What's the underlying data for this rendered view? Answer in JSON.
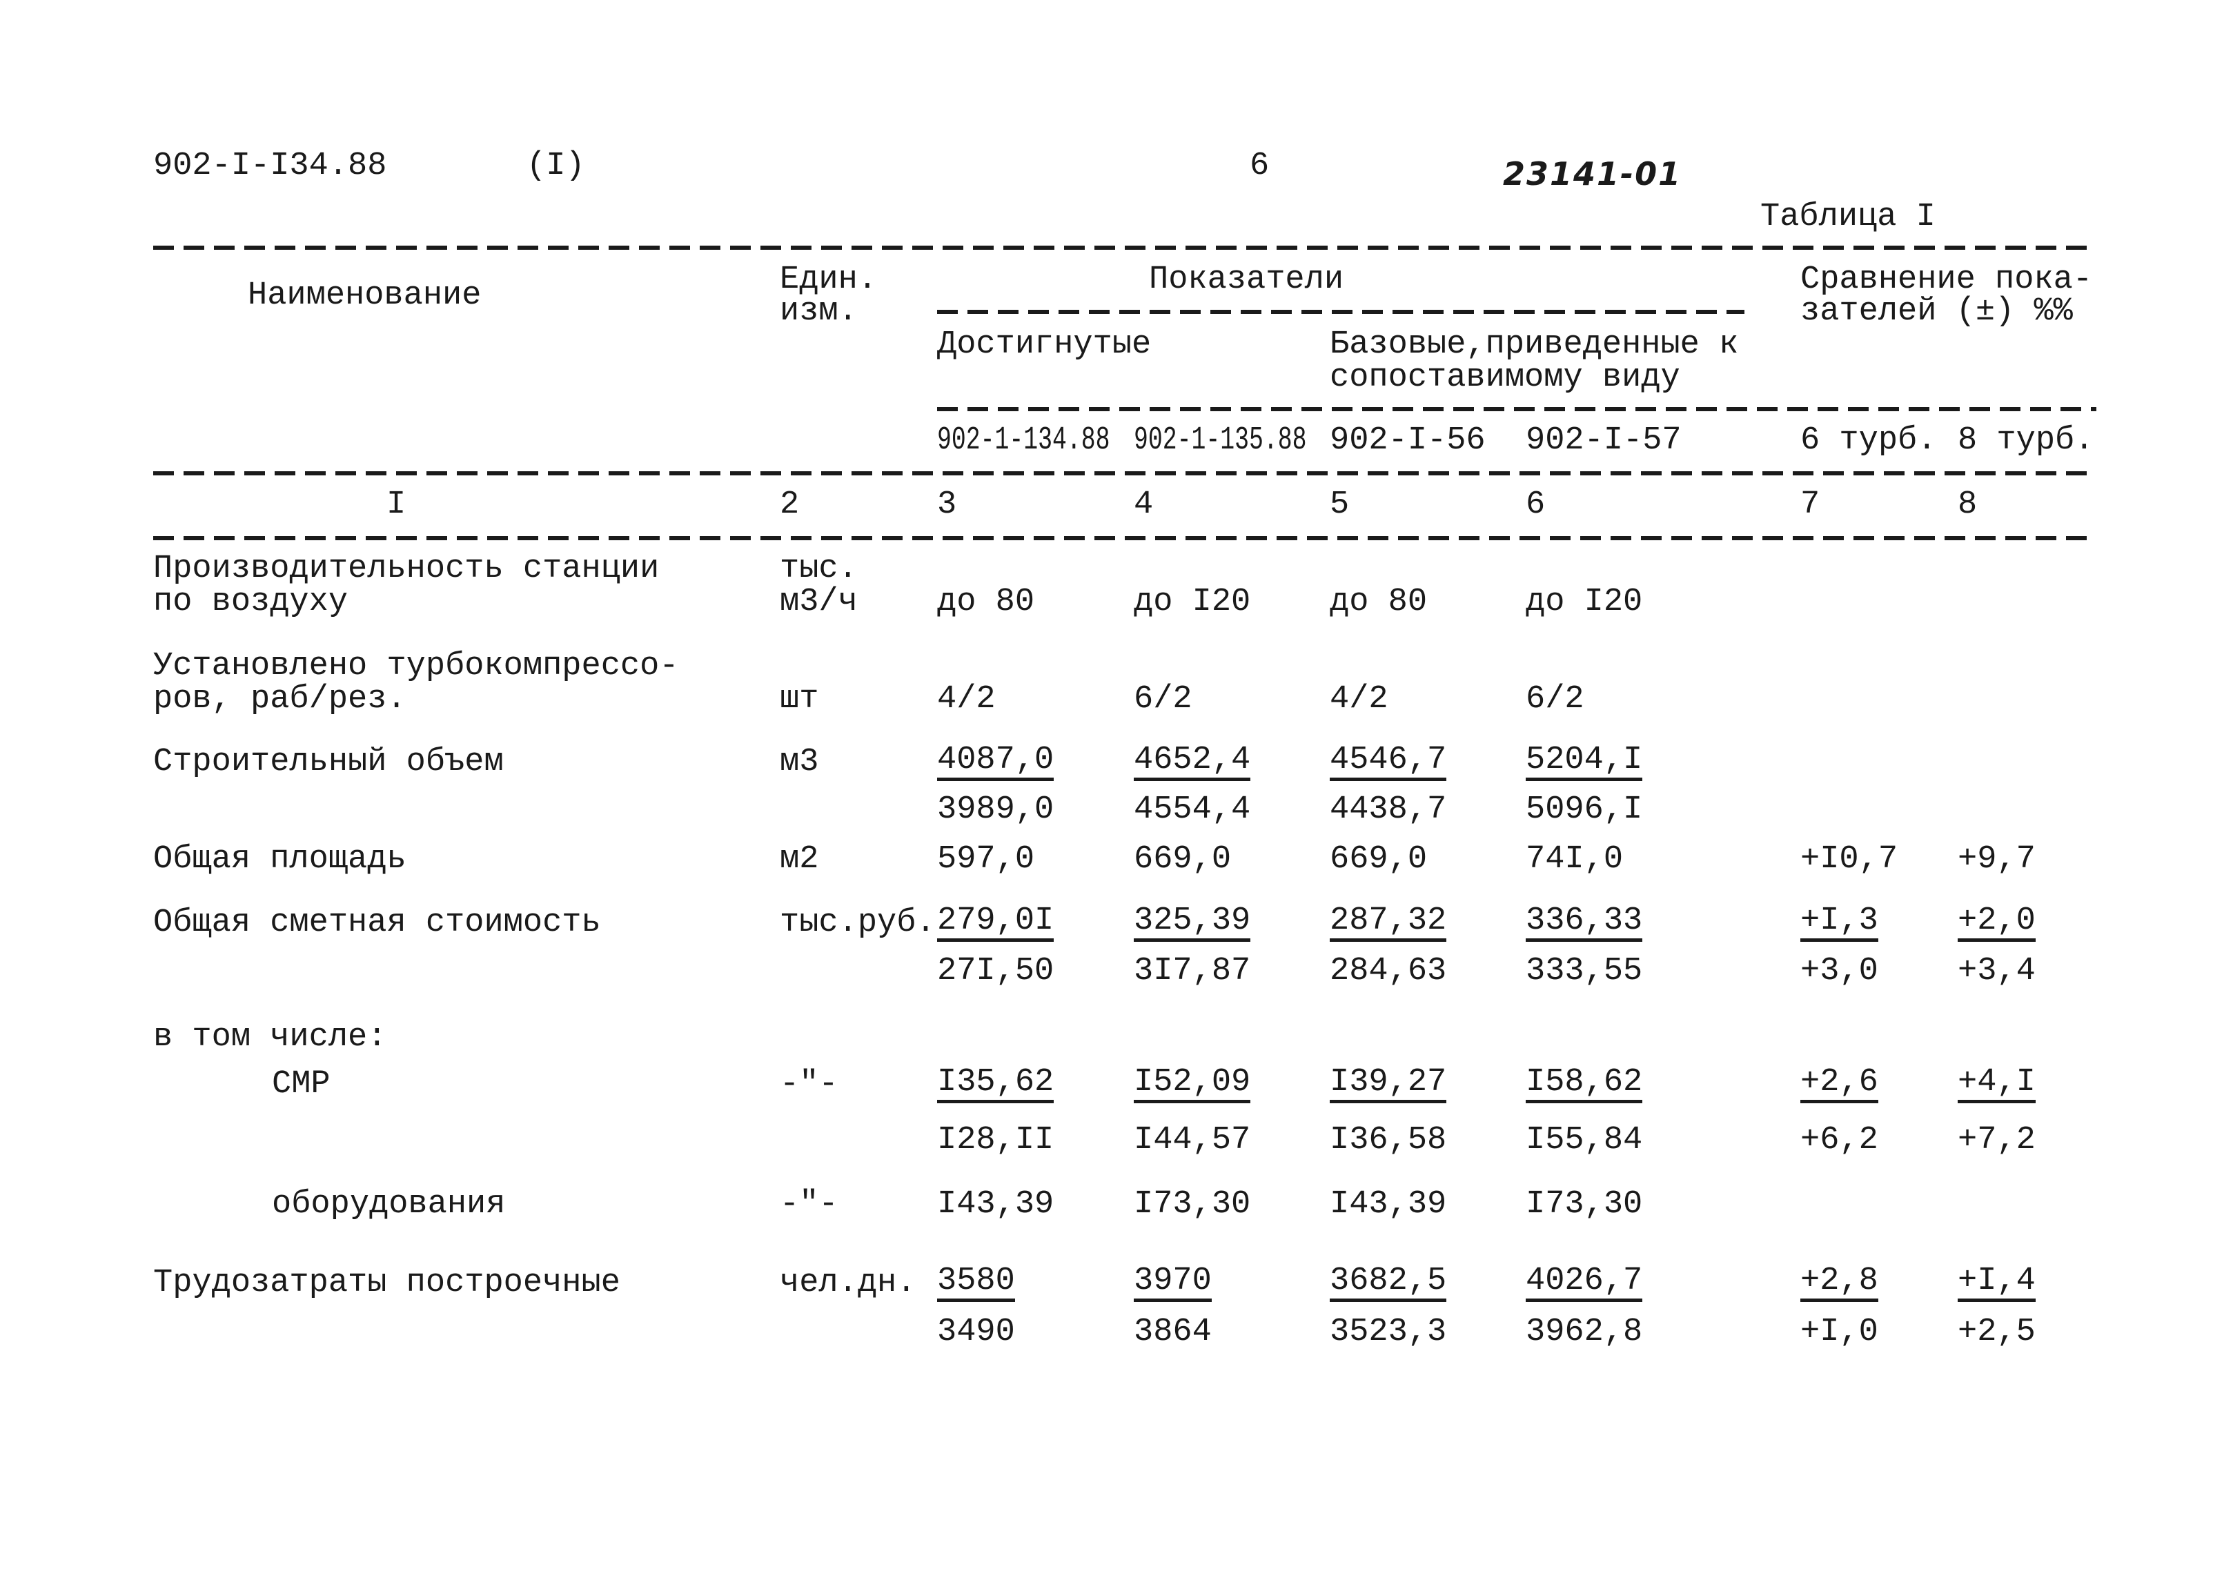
{
  "header": {
    "doc_code": "902-I-I34.88",
    "part": "(I)",
    "page_number": "6",
    "handwritten_number": "23141-01",
    "table_label": "Таблица I"
  },
  "table_head": {
    "name": "Наименование",
    "unit": [
      "Един.",
      "изм."
    ],
    "indicators": "Показатели",
    "achieved": "Достигнутые",
    "base": [
      "Базовые,приведенные к",
      "сопоставимому виду"
    ],
    "comparison": [
      "Сравнение пока-",
      "зателей (±) %%"
    ],
    "codes": [
      "902-1-134.88",
      "902-1-135.88",
      "902-I-56",
      "902-I-57",
      "6 турб.",
      "8 турб."
    ],
    "column_numbers": [
      "I",
      "2",
      "3",
      "4",
      "5",
      "6",
      "7",
      "8"
    ]
  },
  "rows": [
    {
      "name": [
        "Производительность станции",
        "по воздуху"
      ],
      "unit": [
        "тыс.",
        "м3/ч"
      ],
      "values": [
        "до 80",
        "до I20",
        "до 80",
        "до I20",
        null,
        null
      ]
    },
    {
      "name": [
        "Установлено турбокомпрессо-",
        "ров, раб/рез."
      ],
      "unit": [
        "шт"
      ],
      "values": [
        "4/2",
        "6/2",
        "4/2",
        "6/2",
        null,
        null
      ]
    },
    {
      "name": [
        "Строительный объем"
      ],
      "unit": [
        "м3"
      ],
      "values": [
        {
          "top": "4087,0",
          "bottom": "3989,0"
        },
        {
          "top": "4652,4",
          "bottom": "4554,4"
        },
        {
          "top": "4546,7",
          "bottom": "4438,7"
        },
        {
          "top": "5204,I",
          "bottom": "5096,I"
        },
        null,
        null
      ]
    },
    {
      "name": [
        "Общая площадь"
      ],
      "unit": [
        "м2"
      ],
      "values": [
        "597,0",
        "669,0",
        "669,0",
        "74I,0",
        "+I0,7",
        "+9,7"
      ]
    },
    {
      "name": [
        "Общая сметная стоимость"
      ],
      "unit": [
        "тыс.руб."
      ],
      "values": [
        {
          "top": "279,0I",
          "bottom": "27I,50"
        },
        {
          "top": "325,39",
          "bottom": "3I7,87"
        },
        {
          "top": "287,32",
          "bottom": "284,63"
        },
        {
          "top": "336,33",
          "bottom": "333,55"
        },
        {
          "top": "+I,3",
          "bottom": "+3,0"
        },
        {
          "top": "+2,0",
          "bottom": "+3,4"
        }
      ]
    },
    {
      "name": [
        "в том числе:"
      ],
      "unit": [],
      "values": [
        null,
        null,
        null,
        null,
        null,
        null
      ]
    },
    {
      "name": [
        "СМР"
      ],
      "unit": [
        "-\"-"
      ],
      "values": [
        {
          "top": "I35,62",
          "bottom": "I28,II"
        },
        {
          "top": "I52,09",
          "bottom": "I44,57"
        },
        {
          "top": "I39,27",
          "bottom": "I36,58"
        },
        {
          "top": "I58,62",
          "bottom": "I55,84"
        },
        {
          "top": "+2,6",
          "bottom": "+6,2"
        },
        {
          "top": "+4,I",
          "bottom": "+7,2"
        }
      ]
    },
    {
      "name": [
        "оборудования"
      ],
      "unit": [
        "-\"-"
      ],
      "values": [
        "I43,39",
        "I73,30",
        "I43,39",
        "I73,30",
        null,
        null
      ]
    },
    {
      "name": [
        "Трудозатраты построечные"
      ],
      "unit": [
        "чел.дн."
      ],
      "values": [
        {
          "top": "3580",
          "bottom": "3490"
        },
        {
          "top": "3970",
          "bottom": "3864"
        },
        {
          "top": "3682,5",
          "bottom": "3523,3"
        },
        {
          "top": "4026,7",
          "bottom": "3962,8"
        },
        {
          "top": "+2,8",
          "bottom": "+I,0"
        },
        {
          "top": "+I,4",
          "bottom": "+2,5"
        }
      ]
    }
  ]
}
